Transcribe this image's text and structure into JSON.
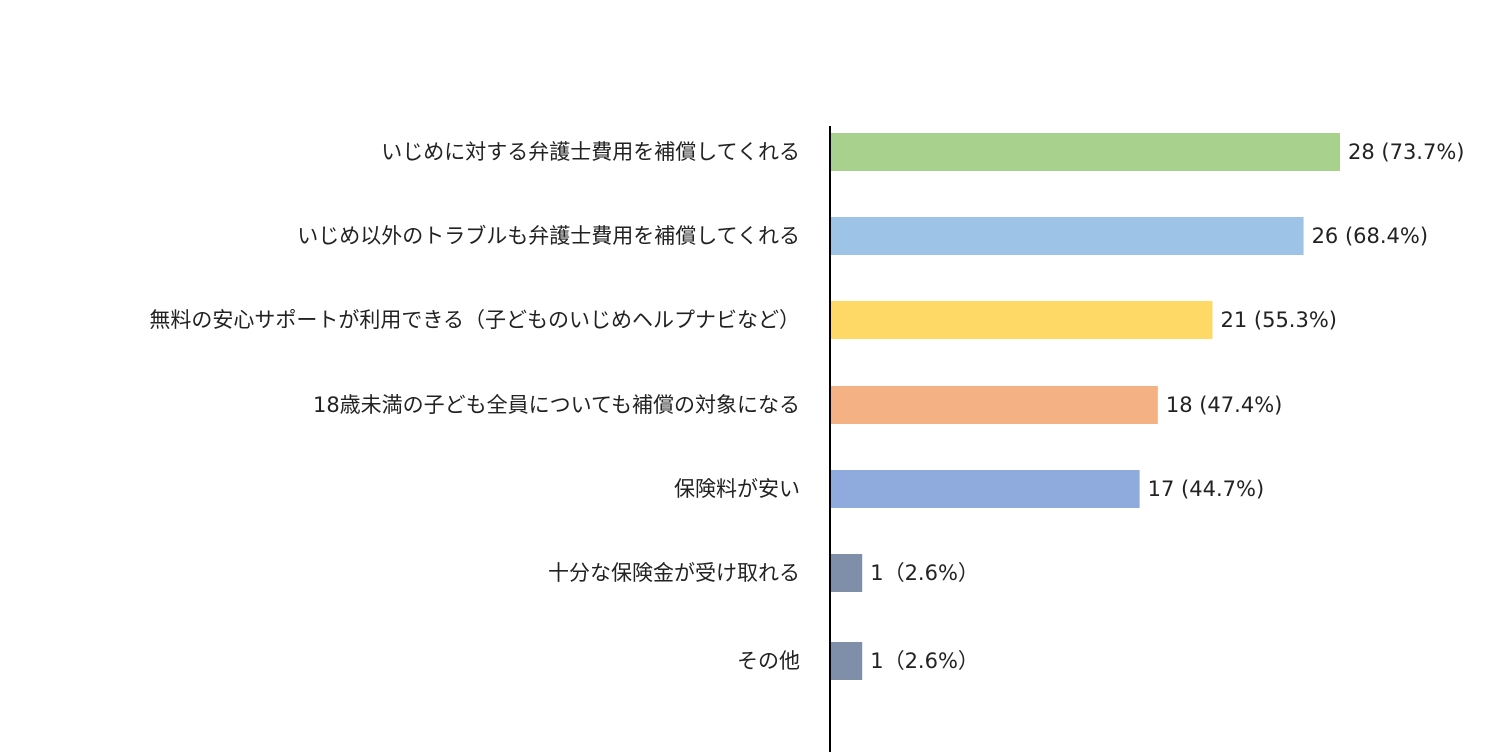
{
  "chart_data": {
    "type": "bar",
    "orientation": "horizontal",
    "categories": [
      "いじめに対する弁護士費用を補償してくれる",
      "いじめ以外のトラブルも弁護士費用を補償してくれる",
      "無料の安心サポートが利用できる（子どものいじめヘルプナビなど）",
      "18歳未満の子ども全員についても補償の対象になる",
      "保険料が安い",
      "十分な保険金が受け取れる",
      "その他"
    ],
    "values": [
      28,
      26,
      21,
      18,
      17,
      1,
      1
    ],
    "value_labels": [
      "28 (73.7%)",
      "26 (68.4%)",
      "21 (55.3%)",
      "18 (47.4%)",
      "17 (44.7%)",
      "1（2.6%）",
      "1（2.6%）"
    ],
    "colors": [
      "#a9d18e",
      "#9dc3e6",
      "#ffd966",
      "#f4b183",
      "#8faadc",
      "#7f8fa9",
      "#7f8fa9"
    ],
    "axis_color": "#000000",
    "grid": false,
    "legend": "none",
    "xlim": [
      0,
      38
    ],
    "title": "",
    "xlabel": "",
    "ylabel": ""
  }
}
